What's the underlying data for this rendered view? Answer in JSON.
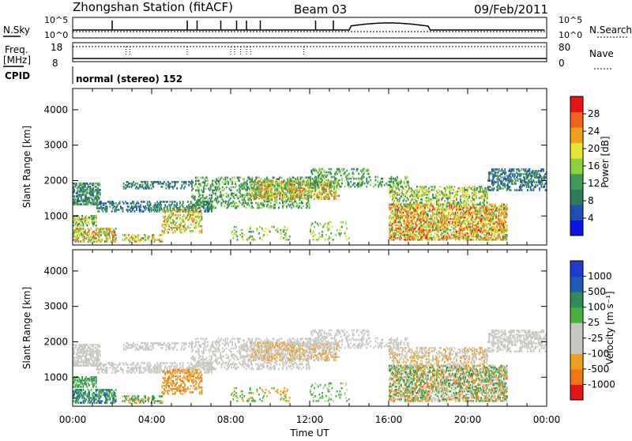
{
  "header": {
    "station_title": "Zhongshan Station (fitACF)",
    "beam": "Beam 03",
    "date": "09/Feb/2011"
  },
  "control_panels": {
    "nsky_label": "N.Sky",
    "nsky_ticks": [
      "10^5",
      "10^0"
    ],
    "nsearch_label": "N.Search",
    "nsearch_ticks": [
      "10^5",
      "10^0"
    ],
    "freq_label": "Freq.",
    "freq_unit": "[MHz]",
    "freq_ticks": [
      "18",
      "8"
    ],
    "nave_label": "Nave",
    "nave_ticks": [
      "80",
      "0"
    ],
    "cpid_label": "CPID",
    "cpid_value": "normal (stereo) 152"
  },
  "chart_data": [
    {
      "type": "heatmap",
      "name": "power",
      "ylabel": "Slant Range [km]",
      "xlabel": "",
      "x_ticks": [
        "00:00",
        "04:00",
        "08:00",
        "12:00",
        "16:00",
        "20:00",
        "00:00"
      ],
      "xlim_hours": [
        0,
        24
      ],
      "y_ticks": [
        1000,
        2000,
        3000,
        4000
      ],
      "ylim": [
        180,
        4600
      ],
      "colorbar": {
        "label": "Power [dB]",
        "ticks": [
          "4",
          "8",
          "12",
          "16",
          "20",
          "24",
          "28"
        ],
        "range": [
          0,
          30
        ]
      }
    },
    {
      "type": "heatmap",
      "name": "velocity",
      "ylabel": "Slant Range [km]",
      "xlabel": "Time UT",
      "x_ticks": [
        "00:00",
        "04:00",
        "08:00",
        "12:00",
        "16:00",
        "20:00",
        "00:00"
      ],
      "xlim_hours": [
        0,
        24
      ],
      "y_ticks": [
        1000,
        2000,
        3000,
        4000
      ],
      "ylim": [
        180,
        4600
      ],
      "colorbar": {
        "label": "Velocity [m s⁻¹]",
        "ticks": [
          "1000",
          "500",
          "100",
          "25",
          "-25",
          "-100",
          "-500",
          "-1000"
        ]
      }
    }
  ],
  "colors": {
    "power_scale": [
      "#0a14e6",
      "#1e4fb4",
      "#2e7e5a",
      "#3c9a55",
      "#8cd23c",
      "#e6e632",
      "#f0a01e",
      "#f0641e",
      "#e61414"
    ],
    "velocity_scale": [
      "#1e3cd2",
      "#1e5ab4",
      "#2e8c5a",
      "#46b43c",
      "#c8c8c3",
      "#c8c8c3",
      "#f0a01e",
      "#f07814",
      "#e61414"
    ]
  }
}
